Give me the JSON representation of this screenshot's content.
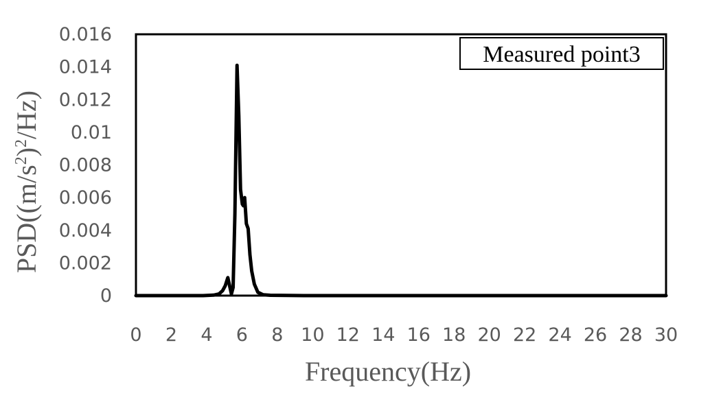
{
  "chart_data": {
    "type": "line",
    "title": "",
    "xlabel": "Frequency(Hz)",
    "ylabel_parts": {
      "prefix": "PSD((m/s",
      "sup1": "2",
      "middle": ")",
      "sup2": "2",
      "suffix": "/Hz)"
    },
    "xlim": [
      0,
      30
    ],
    "ylim": [
      0,
      0.016
    ],
    "x_ticks": [
      "0",
      "2",
      "4",
      "6",
      "8",
      "10",
      "12",
      "14",
      "16",
      "18",
      "20",
      "22",
      "24",
      "26",
      "28",
      "30"
    ],
    "y_ticks": [
      "0",
      "0.002",
      "0.004",
      "0.006",
      "0.008",
      "0.01",
      "0.012",
      "0.014",
      "0.016"
    ],
    "grid": false,
    "legend_position": "top-right",
    "series": [
      {
        "name": "Measured point3",
        "color": "#000000",
        "points": [
          [
            0,
            0
          ],
          [
            3.8,
            0
          ],
          [
            4.4,
            3e-05
          ],
          [
            4.7,
            0.0001
          ],
          [
            4.9,
            0.0003
          ],
          [
            5.05,
            0.0006
          ],
          [
            5.2,
            0.0011
          ],
          [
            5.3,
            0.0006
          ],
          [
            5.4,
            0.0001
          ],
          [
            5.5,
            0.0005
          ],
          [
            5.6,
            0.005
          ],
          [
            5.72,
            0.0141
          ],
          [
            5.82,
            0.011
          ],
          [
            5.92,
            0.0065
          ],
          [
            6.02,
            0.0056
          ],
          [
            6.08,
            0.0055
          ],
          [
            6.15,
            0.006
          ],
          [
            6.25,
            0.0044
          ],
          [
            6.35,
            0.0041
          ],
          [
            6.45,
            0.0025
          ],
          [
            6.55,
            0.0015
          ],
          [
            6.7,
            0.0007
          ],
          [
            6.9,
            0.0002
          ],
          [
            7.2,
            5e-05
          ],
          [
            7.6,
            2e-05
          ],
          [
            8.6,
            1e-05
          ],
          [
            9.5,
            0
          ],
          [
            30,
            0
          ]
        ]
      }
    ]
  }
}
